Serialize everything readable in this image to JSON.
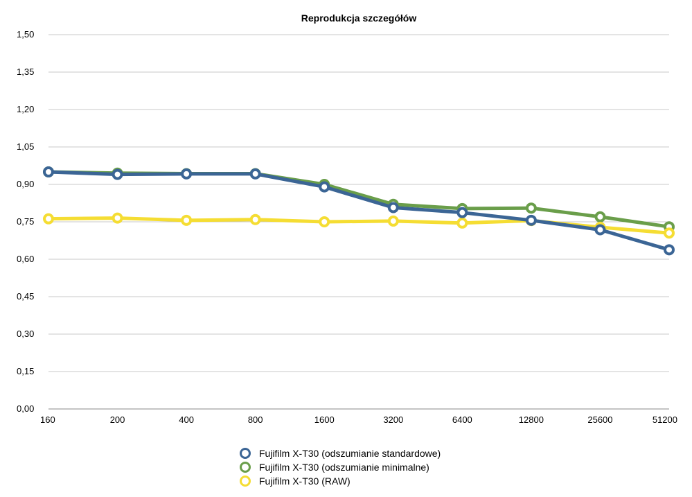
{
  "chart_data": {
    "type": "line",
    "title": "Reprodukcja szczegółów",
    "xlabel": "",
    "ylabel": "",
    "categories": [
      "160",
      "200",
      "400",
      "800",
      "1600",
      "3200",
      "6400",
      "12800",
      "25600",
      "51200"
    ],
    "ylim": [
      0,
      1.5
    ],
    "yticks": [
      "0,00",
      "0,15",
      "0,30",
      "0,45",
      "0,60",
      "0,75",
      "0,90",
      "1,05",
      "1,20",
      "1,35",
      "1,50"
    ],
    "grid": true,
    "legend_position": "bottom",
    "series": [
      {
        "name": "Fujifilm X-T30 (odszumianie minimalne)",
        "color": "#6a9e4a",
        "values": [
          0.95,
          0.945,
          0.943,
          0.943,
          0.9,
          0.82,
          0.803,
          0.805,
          0.77,
          0.73
        ]
      },
      {
        "name": "Fujifilm X-T30 (RAW)",
        "color": "#f5dd33",
        "values": [
          0.762,
          0.765,
          0.756,
          0.759,
          0.75,
          0.753,
          0.745,
          0.755,
          0.728,
          0.705
        ]
      },
      {
        "name": "Fujifilm X-T30 (odszumianie standardowe)",
        "color": "#3b6595",
        "values": [
          0.95,
          0.94,
          0.942,
          0.942,
          0.89,
          0.807,
          0.787,
          0.756,
          0.718,
          0.638
        ]
      }
    ]
  },
  "legend_order": [
    2,
    0,
    1
  ]
}
